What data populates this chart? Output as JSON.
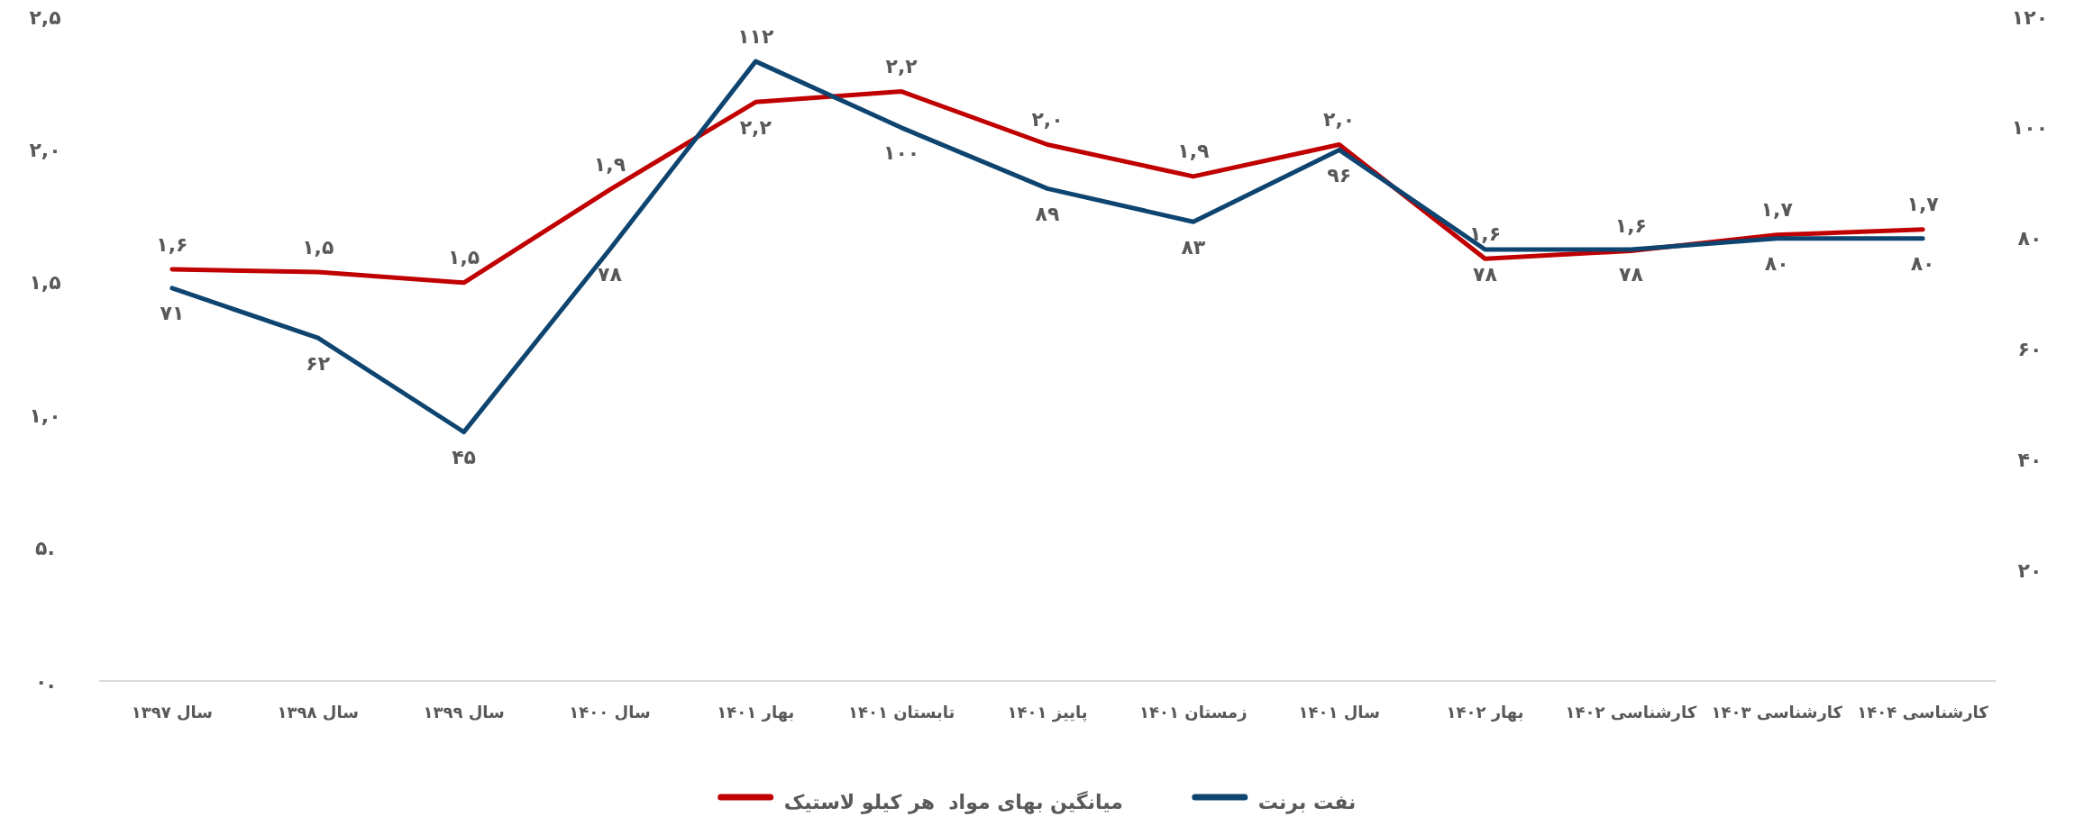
{
  "chart_data": {
    "type": "line",
    "categories": [
      "سال ۱۳۹۷",
      "سال ۱۳۹۸",
      "سال ۱۳۹۹",
      "سال ۱۴۰۰",
      "بهار ۱۴۰۱",
      "تابستان ۱۴۰۱",
      "پاییز ۱۴۰۱",
      "زمستان ۱۴۰۱",
      "سال ۱۴۰۱",
      "بهار ۱۴۰۲",
      "کارشناسی ۱۴۰۲",
      "کارشناسی ۱۴۰۳",
      "کارشناسی ۱۴۰۴"
    ],
    "series": [
      {
        "name": "میانگین بهای مواد  هر کیلو لاستیک",
        "color": "#c00000",
        "values": [
          1.55,
          1.54,
          1.5,
          1.85,
          2.18,
          2.22,
          2.02,
          1.9,
          2.02,
          1.59,
          1.62,
          1.68,
          1.7
        ],
        "value_labels": [
          "۱,۶",
          "۱,۵",
          "۱,۵",
          "۱,۹",
          "۲,۲",
          "۲,۲",
          "۲,۰",
          "۱,۹",
          "۲,۰",
          "۱,۶",
          "۱,۶",
          "۱,۷",
          "۱,۷"
        ]
      },
      {
        "name": "نفت برنت",
        "color": "#0e4470",
        "axis": "y2",
        "values": [
          71,
          62,
          45,
          78,
          112,
          100,
          89,
          83,
          96,
          78,
          78,
          80,
          80
        ],
        "value_labels": [
          "۷۱",
          "۶۲",
          "۴۵",
          "۷۸",
          "۱۱۲",
          "۱۰۰",
          "۸۹",
          "۸۳",
          "۹۶",
          "۷۸",
          "۷۸",
          "۸۰",
          "۸۰"
        ]
      }
    ],
    "ylim": [
      0,
      2.5
    ],
    "yticks": [
      {
        "value": 0,
        "label": ".۰"
      },
      {
        "value": 0.5,
        "label": ".۵"
      },
      {
        "value": 1,
        "label": "۱,۰"
      },
      {
        "value": 1.5,
        "label": "۱,۵"
      },
      {
        "value": 2,
        "label": "۲,۰"
      },
      {
        "value": 2.5,
        "label": "۲,۵"
      }
    ],
    "y2lim": [
      0,
      120
    ],
    "y2ticks": [
      {
        "value": 20,
        "label": "۲۰"
      },
      {
        "value": 40,
        "label": "۴۰"
      },
      {
        "value": 60,
        "label": "۶۰"
      },
      {
        "value": 80,
        "label": "۸۰"
      },
      {
        "value": 100,
        "label": "۱۰۰"
      },
      {
        "value": 120,
        "label": "۱۲۰"
      }
    ],
    "legend": "bottom"
  }
}
